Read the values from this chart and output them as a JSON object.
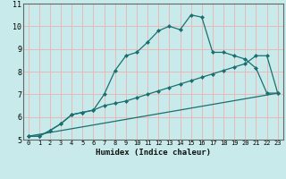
{
  "xlabel": "Humidex (Indice chaleur)",
  "bg_color": "#c8eaea",
  "grid_color": "#e8b8b8",
  "line_color": "#1a7070",
  "xlim": [
    -0.5,
    23.5
  ],
  "ylim": [
    5,
    11
  ],
  "xticks": [
    0,
    1,
    2,
    3,
    4,
    5,
    6,
    7,
    8,
    9,
    10,
    11,
    12,
    13,
    14,
    15,
    16,
    17,
    18,
    19,
    20,
    21,
    22,
    23
  ],
  "yticks": [
    5,
    6,
    7,
    8,
    9,
    10,
    11
  ],
  "line1_x": [
    0,
    1,
    2,
    3,
    4,
    5,
    6,
    7,
    8,
    9,
    10,
    11,
    12,
    13,
    14,
    15,
    16,
    17,
    18,
    19,
    20,
    21,
    22,
    23
  ],
  "line1_y": [
    5.15,
    5.15,
    5.4,
    5.7,
    6.1,
    6.2,
    6.3,
    7.0,
    8.05,
    8.7,
    8.85,
    9.3,
    9.8,
    10.0,
    9.85,
    10.5,
    10.4,
    8.85,
    8.85,
    8.7,
    8.55,
    8.15,
    7.05,
    7.05
  ],
  "line2_x": [
    0,
    1,
    2,
    3,
    4,
    5,
    6,
    7,
    8,
    9,
    10,
    11,
    12,
    13,
    14,
    15,
    16,
    17,
    18,
    19,
    20,
    21,
    22,
    23
  ],
  "line2_y": [
    5.15,
    5.15,
    5.4,
    5.7,
    6.1,
    6.2,
    6.3,
    6.5,
    6.6,
    6.7,
    6.85,
    7.0,
    7.15,
    7.3,
    7.45,
    7.6,
    7.75,
    7.9,
    8.05,
    8.2,
    8.35,
    8.7,
    8.7,
    7.05
  ],
  "line3_x": [
    0,
    23
  ],
  "line3_y": [
    5.15,
    7.05
  ]
}
